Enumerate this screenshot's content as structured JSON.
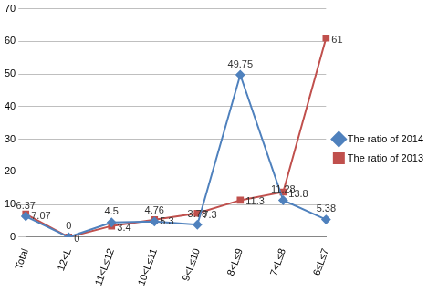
{
  "chart_data": {
    "type": "line",
    "categories": [
      "Total",
      "12<L",
      "11<L≤12",
      "10<L≤11",
      "9<L≤10",
      "8<L≤9",
      "7<L≤8",
      "6≤L≤7"
    ],
    "series": [
      {
        "name": "The ratio of 2014",
        "color": "#4f81bd",
        "marker": "diamond",
        "values": [
          6.37,
          0,
          4.5,
          4.76,
          3.78,
          49.75,
          11.28,
          5.38
        ]
      },
      {
        "name": "The ratio of 2013",
        "color": "#c0504d",
        "marker": "square",
        "values": [
          7.07,
          0,
          3.4,
          5.3,
          7.3,
          11.3,
          13.8,
          61
        ]
      }
    ],
    "ylim": [
      0,
      70
    ],
    "yticks": [
      0,
      10,
      20,
      30,
      40,
      50,
      60,
      70
    ],
    "grid": true,
    "legend": "right",
    "data_labels": true
  }
}
